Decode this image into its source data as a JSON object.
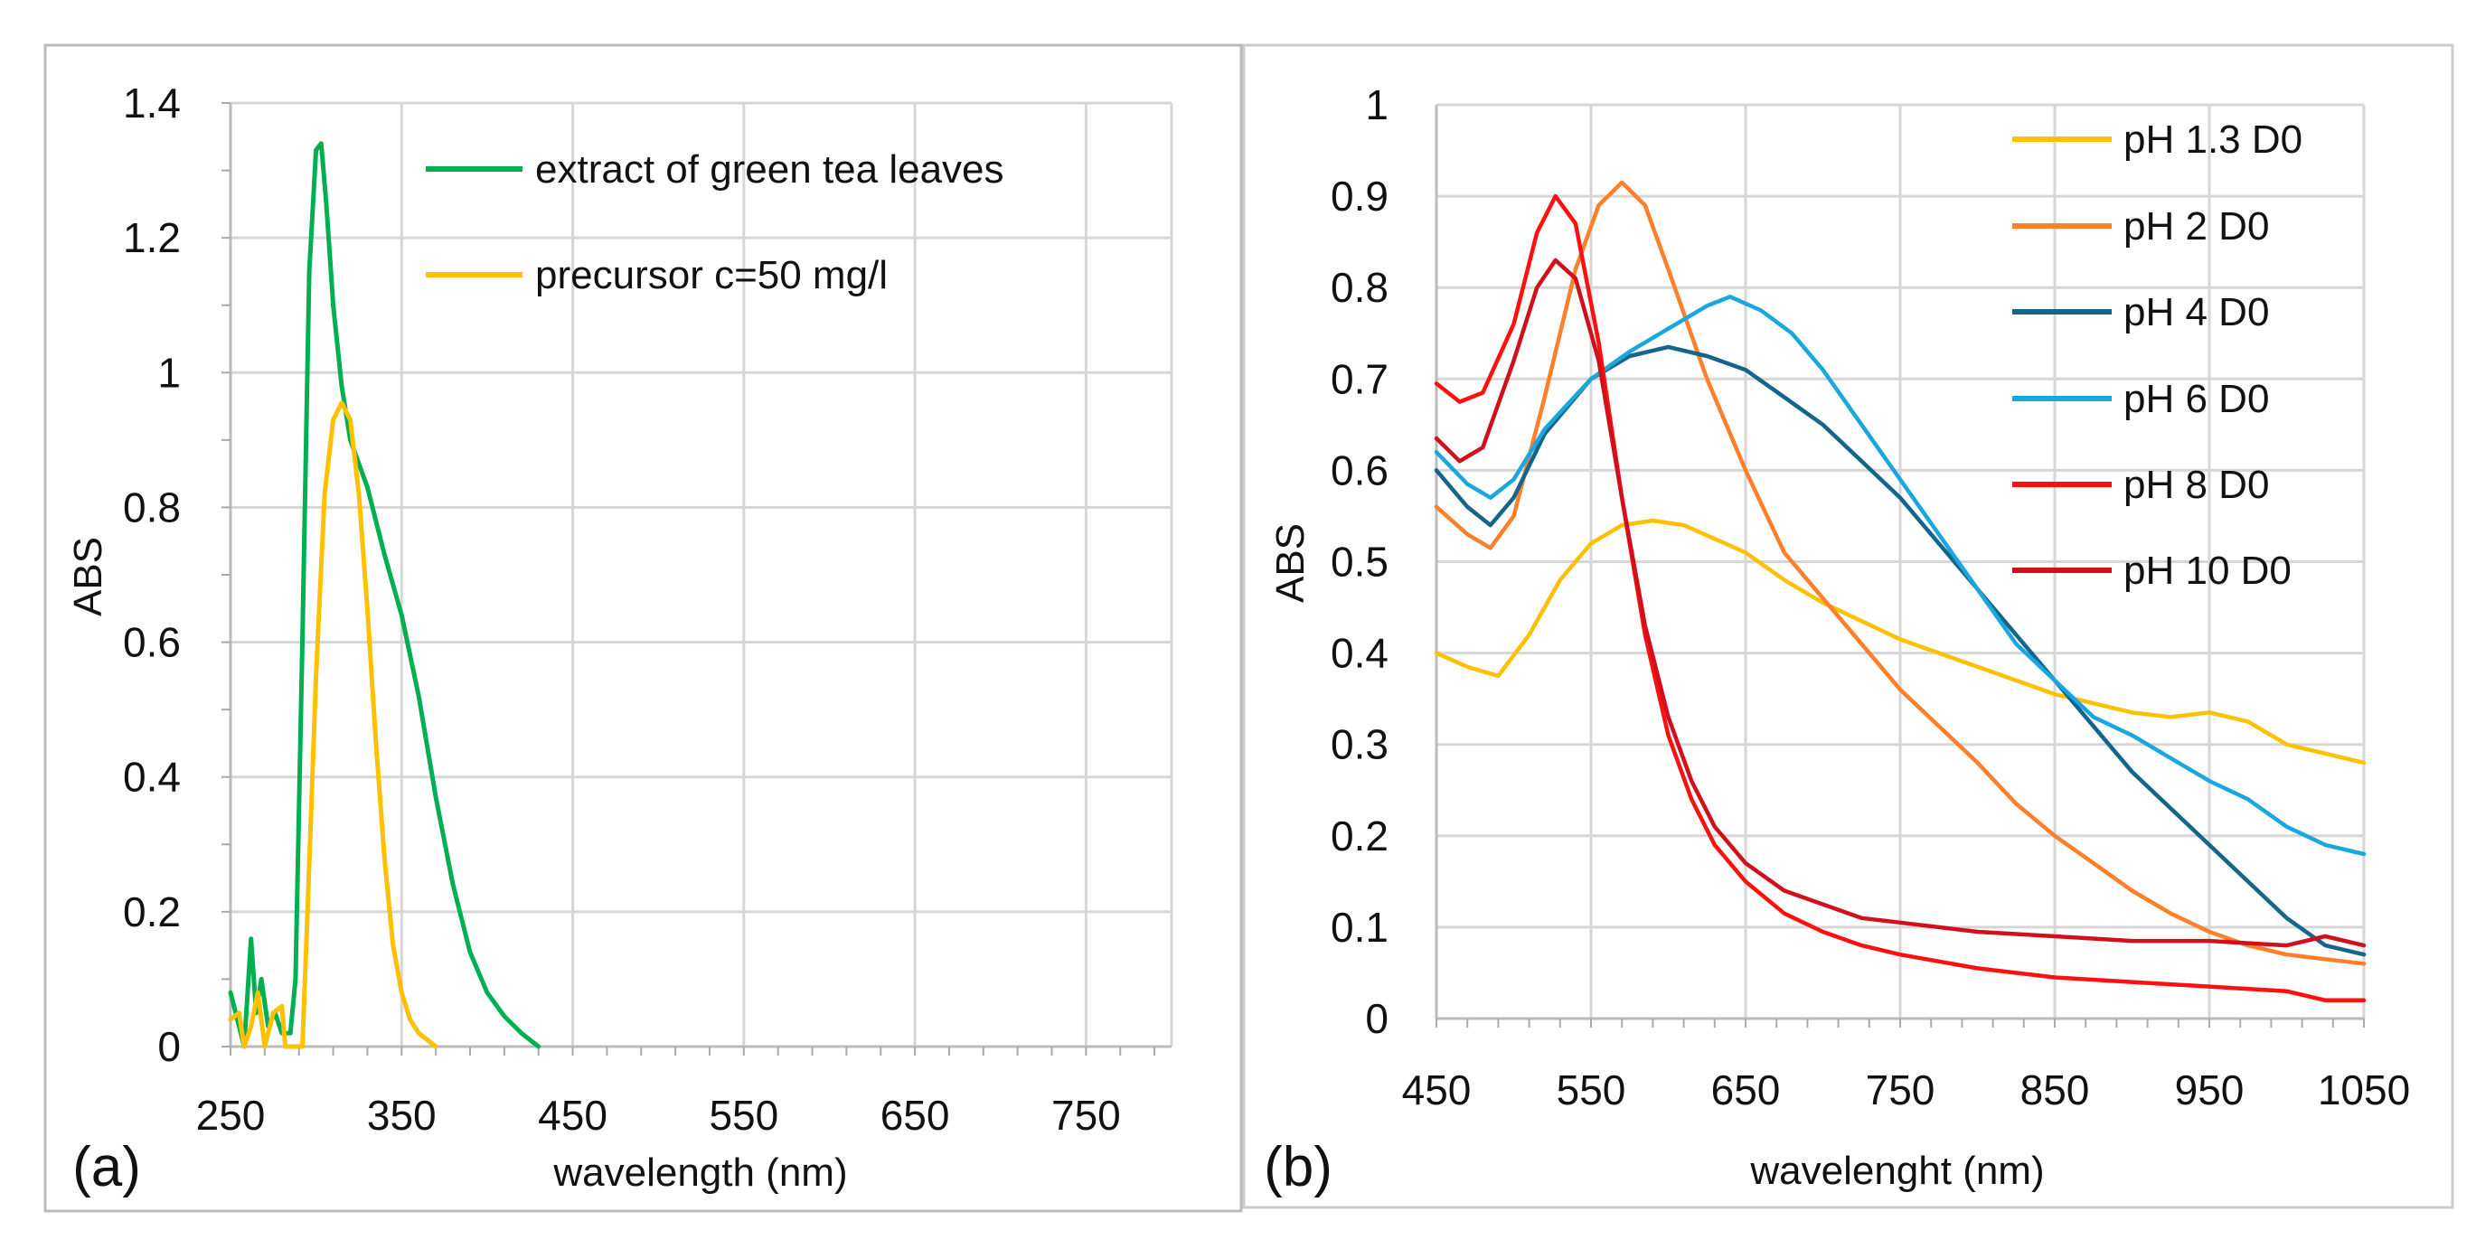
{
  "chart_data": [
    {
      "id": "a",
      "type": "line",
      "panel_label": "(a)",
      "xlabel": "wavelength (nm)",
      "ylabel": "ABS",
      "xlim": [
        250,
        800
      ],
      "ylim": [
        0,
        1.4
      ],
      "xticks": [
        250,
        350,
        450,
        550,
        650,
        750
      ],
      "xtick_labels": [
        "250",
        "350",
        "450",
        "550",
        "650",
        "750"
      ],
      "yticks": [
        0,
        0.2,
        0.4,
        0.6,
        0.8,
        1,
        1.2,
        1.4
      ],
      "ytick_labels": [
        "0",
        "0.2",
        "0.4",
        "0.6",
        "0.8",
        "1",
        "1.2",
        "1.4"
      ],
      "grid": true,
      "legend_position": "top-right",
      "series": [
        {
          "name": "extract of green tea leaves",
          "color": "#00B050",
          "x": [
            250,
            255,
            258,
            262,
            265,
            268,
            272,
            276,
            280,
            285,
            288,
            292,
            296,
            300,
            303,
            306,
            310,
            315,
            320,
            330,
            340,
            350,
            360,
            370,
            380,
            390,
            400,
            410,
            420,
            430
          ],
          "y": [
            0.08,
            0.03,
            0.0,
            0.16,
            0.05,
            0.1,
            0.03,
            0.05,
            0.02,
            0.02,
            0.1,
            0.6,
            1.15,
            1.33,
            1.34,
            1.25,
            1.1,
            0.98,
            0.9,
            0.83,
            0.73,
            0.64,
            0.52,
            0.37,
            0.24,
            0.14,
            0.08,
            0.045,
            0.02,
            0.0
          ]
        },
        {
          "name": "precursor c=50 mg/l",
          "color": "#FFC000",
          "x": [
            250,
            255,
            258,
            262,
            266,
            270,
            275,
            280,
            282,
            292,
            295,
            300,
            305,
            310,
            315,
            320,
            325,
            330,
            335,
            340,
            345,
            350,
            355,
            360,
            370
          ],
          "y": [
            0.04,
            0.05,
            0.0,
            0.03,
            0.08,
            0.0,
            0.05,
            0.06,
            0.0,
            0.0,
            0.2,
            0.55,
            0.82,
            0.93,
            0.955,
            0.93,
            0.82,
            0.65,
            0.45,
            0.28,
            0.15,
            0.08,
            0.04,
            0.02,
            0.0
          ]
        }
      ]
    },
    {
      "id": "b",
      "type": "line",
      "panel_label": "(b)",
      "xlabel": "wavelenght (nm)",
      "ylabel": "ABS",
      "xlim": [
        450,
        1050
      ],
      "ylim": [
        0,
        1
      ],
      "xticks": [
        450,
        550,
        650,
        750,
        850,
        950,
        1050
      ],
      "xtick_labels": [
        "450",
        "550",
        "650",
        "750",
        "850",
        "950",
        "1050"
      ],
      "yticks": [
        0,
        0.1,
        0.2,
        0.3,
        0.4,
        0.5,
        0.6,
        0.7,
        0.8,
        0.9,
        1
      ],
      "ytick_labels": [
        "0",
        "0.1",
        "0.2",
        "0.3",
        "0.4",
        "0.5",
        "0.6",
        "0.7",
        "0.8",
        "0.9",
        "1"
      ],
      "grid": true,
      "legend_position": "top-right",
      "series": [
        {
          "name": "pH 1.3 D0",
          "color": "#FFC000",
          "x": [
            450,
            470,
            490,
            510,
            530,
            550,
            570,
            590,
            610,
            630,
            650,
            675,
            700,
            725,
            750,
            775,
            800,
            825,
            850,
            875,
            900,
            925,
            950,
            975,
            1000,
            1025,
            1050
          ],
          "y": [
            0.4,
            0.385,
            0.375,
            0.42,
            0.48,
            0.52,
            0.54,
            0.545,
            0.54,
            0.525,
            0.51,
            0.48,
            0.455,
            0.435,
            0.415,
            0.4,
            0.385,
            0.37,
            0.355,
            0.345,
            0.335,
            0.33,
            0.335,
            0.325,
            0.3,
            0.29,
            0.28
          ]
        },
        {
          "name": "pH 2 D0",
          "color": "#FF7F2A",
          "x": [
            450,
            470,
            485,
            500,
            520,
            540,
            555,
            570,
            585,
            600,
            625,
            650,
            675,
            700,
            725,
            750,
            775,
            800,
            825,
            850,
            875,
            900,
            925,
            950,
            975,
            1000,
            1025,
            1050
          ],
          "y": [
            0.56,
            0.53,
            0.515,
            0.55,
            0.68,
            0.82,
            0.89,
            0.915,
            0.89,
            0.82,
            0.7,
            0.6,
            0.51,
            0.46,
            0.41,
            0.36,
            0.32,
            0.28,
            0.235,
            0.2,
            0.17,
            0.14,
            0.115,
            0.095,
            0.08,
            0.07,
            0.065,
            0.06
          ]
        },
        {
          "name": "pH 4 D0",
          "color": "#13658A",
          "x": [
            450,
            470,
            485,
            500,
            520,
            550,
            575,
            600,
            625,
            650,
            675,
            700,
            725,
            750,
            775,
            800,
            825,
            850,
            875,
            900,
            925,
            950,
            975,
            1000,
            1025,
            1050
          ],
          "y": [
            0.6,
            0.56,
            0.54,
            0.57,
            0.64,
            0.7,
            0.725,
            0.735,
            0.725,
            0.71,
            0.68,
            0.65,
            0.61,
            0.57,
            0.52,
            0.47,
            0.42,
            0.37,
            0.32,
            0.27,
            0.23,
            0.19,
            0.15,
            0.11,
            0.08,
            0.07
          ]
        },
        {
          "name": "pH 6 D0",
          "color": "#1AA7DE",
          "x": [
            450,
            470,
            485,
            500,
            520,
            550,
            575,
            600,
            625,
            640,
            660,
            680,
            700,
            725,
            750,
            775,
            800,
            825,
            850,
            875,
            900,
            925,
            950,
            975,
            1000,
            1025,
            1050
          ],
          "y": [
            0.62,
            0.585,
            0.57,
            0.59,
            0.645,
            0.7,
            0.73,
            0.755,
            0.78,
            0.79,
            0.775,
            0.75,
            0.71,
            0.65,
            0.59,
            0.53,
            0.47,
            0.41,
            0.37,
            0.33,
            0.31,
            0.285,
            0.26,
            0.24,
            0.21,
            0.19,
            0.18
          ]
        },
        {
          "name": "pH 8 D0",
          "color": "#FF1010",
          "x": [
            450,
            465,
            480,
            500,
            515,
            527,
            540,
            555,
            570,
            585,
            600,
            615,
            630,
            650,
            675,
            700,
            725,
            750,
            800,
            850,
            900,
            950,
            1000,
            1025,
            1050
          ],
          "y": [
            0.695,
            0.675,
            0.685,
            0.76,
            0.86,
            0.9,
            0.87,
            0.74,
            0.57,
            0.42,
            0.31,
            0.24,
            0.19,
            0.15,
            0.115,
            0.095,
            0.08,
            0.07,
            0.055,
            0.045,
            0.04,
            0.035,
            0.03,
            0.02,
            0.02
          ]
        },
        {
          "name": "pH 10 D0",
          "color": "#D0101A",
          "x": [
            450,
            465,
            480,
            500,
            515,
            527,
            540,
            555,
            570,
            585,
            600,
            615,
            630,
            650,
            675,
            700,
            725,
            750,
            800,
            850,
            900,
            950,
            1000,
            1025,
            1050
          ],
          "y": [
            0.635,
            0.61,
            0.625,
            0.72,
            0.8,
            0.83,
            0.81,
            0.72,
            0.57,
            0.43,
            0.33,
            0.26,
            0.21,
            0.17,
            0.14,
            0.125,
            0.11,
            0.105,
            0.095,
            0.09,
            0.085,
            0.085,
            0.08,
            0.09,
            0.08
          ]
        }
      ]
    }
  ]
}
